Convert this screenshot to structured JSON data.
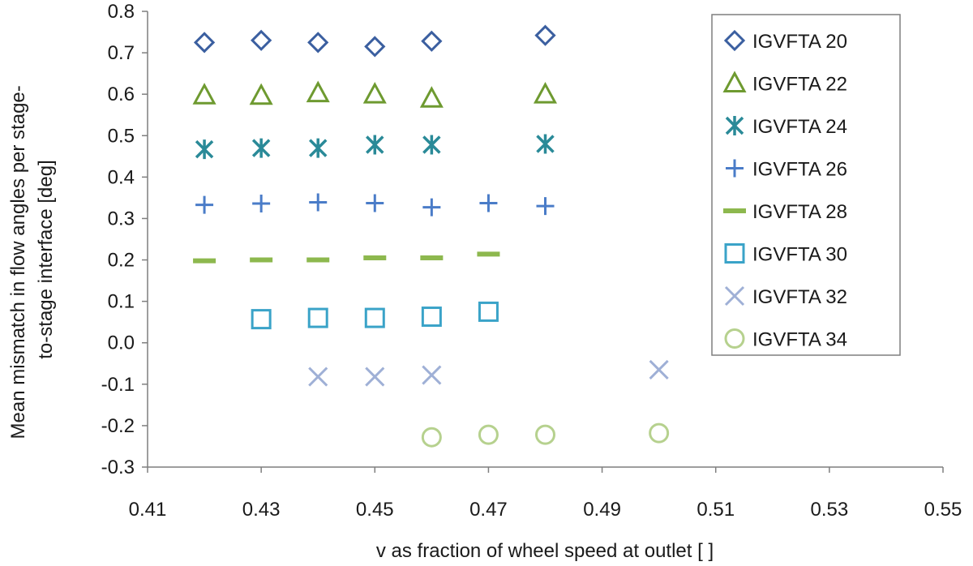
{
  "chart_data": {
    "type": "scatter",
    "title": "",
    "xlabel": "v as fraction of wheel speed at outlet [ ]",
    "ylabel_lines": [
      "Mean mismatch in flow angles per stage-",
      "to-stage  interface [deg]"
    ],
    "xlim": [
      0.41,
      0.55
    ],
    "ylim": [
      -0.3,
      0.8
    ],
    "x_ticks": [
      0.41,
      0.43,
      0.45,
      0.47,
      0.49,
      0.51,
      0.53,
      0.55
    ],
    "x_tick_labels": [
      "0.41",
      "0.43",
      "0.45",
      "0.47",
      "0.49",
      "0.51",
      "0.53",
      "0.55"
    ],
    "y_ticks": [
      0.8,
      0.7,
      0.6,
      0.5,
      0.4,
      0.3,
      0.2,
      0.1,
      0.0,
      -0.1,
      -0.2,
      -0.3
    ],
    "y_tick_labels": [
      "0.8",
      "0.7",
      "0.6",
      "0.5",
      "0.4",
      "0.3",
      "0.2",
      "0.1",
      "0.0",
      "-0.1",
      "-0.2",
      "-0.3"
    ],
    "grid": false,
    "legend_position": "top-right",
    "series": [
      {
        "name": "IGVFTA 20",
        "marker": "diamond",
        "color": "#3b5fa0",
        "points": [
          [
            0.42,
            0.725
          ],
          [
            0.43,
            0.73
          ],
          [
            0.44,
            0.725
          ],
          [
            0.45,
            0.715
          ],
          [
            0.46,
            0.728
          ],
          [
            0.48,
            0.742
          ]
        ]
      },
      {
        "name": "IGVFTA 22",
        "marker": "triangle",
        "color": "#6e9a30",
        "points": [
          [
            0.42,
            0.598
          ],
          [
            0.43,
            0.597
          ],
          [
            0.44,
            0.603
          ],
          [
            0.45,
            0.6
          ],
          [
            0.46,
            0.59
          ],
          [
            0.48,
            0.6
          ]
        ]
      },
      {
        "name": "IGVFTA 24",
        "marker": "asterisk",
        "color": "#2a8a98",
        "points": [
          [
            0.42,
            0.467
          ],
          [
            0.43,
            0.47
          ],
          [
            0.44,
            0.47
          ],
          [
            0.45,
            0.478
          ],
          [
            0.46,
            0.478
          ],
          [
            0.48,
            0.48
          ]
        ]
      },
      {
        "name": "IGVFTA 26",
        "marker": "plus",
        "color": "#4a7cc8",
        "points": [
          [
            0.42,
            0.333
          ],
          [
            0.43,
            0.336
          ],
          [
            0.44,
            0.339
          ],
          [
            0.45,
            0.337
          ],
          [
            0.46,
            0.327
          ],
          [
            0.47,
            0.337
          ],
          [
            0.48,
            0.33
          ]
        ]
      },
      {
        "name": "IGVFTA 28",
        "marker": "dash",
        "color": "#8db84e",
        "points": [
          [
            0.42,
            0.198
          ],
          [
            0.43,
            0.2
          ],
          [
            0.44,
            0.2
          ],
          [
            0.45,
            0.205
          ],
          [
            0.46,
            0.205
          ],
          [
            0.47,
            0.214
          ]
        ]
      },
      {
        "name": "IGVFTA 30",
        "marker": "square",
        "color": "#3aa3c8",
        "points": [
          [
            0.43,
            0.057
          ],
          [
            0.44,
            0.06
          ],
          [
            0.45,
            0.06
          ],
          [
            0.46,
            0.063
          ],
          [
            0.47,
            0.075
          ]
        ]
      },
      {
        "name": "IGVFTA 32",
        "marker": "cross",
        "color": "#9fb0d6",
        "points": [
          [
            0.44,
            -0.082
          ],
          [
            0.45,
            -0.082
          ],
          [
            0.46,
            -0.078
          ],
          [
            0.5,
            -0.065
          ]
        ]
      },
      {
        "name": "IGVFTA 34",
        "marker": "circle",
        "color": "#b6d18e",
        "points": [
          [
            0.46,
            -0.228
          ],
          [
            0.47,
            -0.222
          ],
          [
            0.48,
            -0.222
          ],
          [
            0.5,
            -0.218
          ]
        ]
      }
    ]
  }
}
